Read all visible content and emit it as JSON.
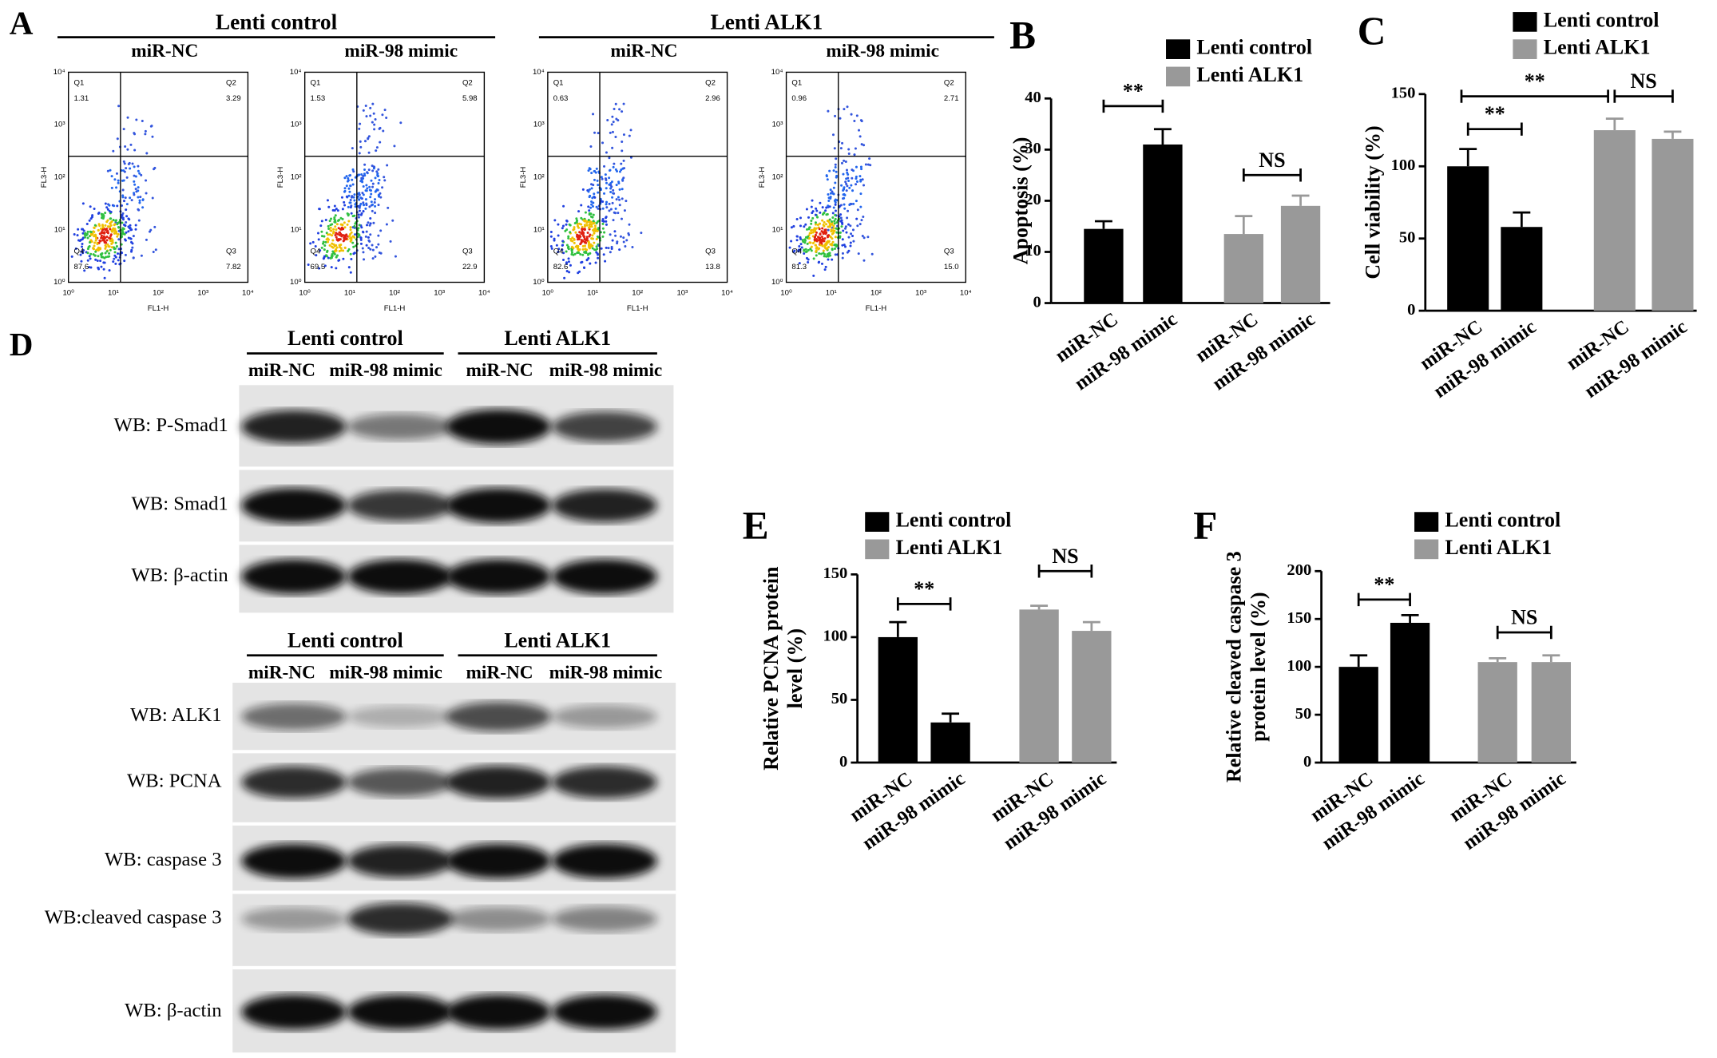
{
  "panel_a": {
    "label": "A",
    "x_axis_label": "FL1-H",
    "y_axis_label": "FL3-H",
    "tick_labels": [
      "10⁰",
      "10¹",
      "10²",
      "10³",
      "10⁴"
    ],
    "quadrant_names": [
      "Q1",
      "Q2",
      "Q3",
      "Q4"
    ],
    "groups": [
      {
        "title": "Lenti control",
        "plots": [
          {
            "title": "miR-NC",
            "quadrant_values": [
              "1.31",
              "3.29",
              "7.82",
              "87.6"
            ]
          },
          {
            "title": "miR-98 mimic",
            "quadrant_values": [
              "1.53",
              "5.98",
              "22.9",
              "69.5"
            ]
          }
        ]
      },
      {
        "title": "Lenti ALK1",
        "plots": [
          {
            "title": "miR-NC",
            "quadrant_values": [
              "0.63",
              "2.96",
              "13.8",
              "82.6"
            ]
          },
          {
            "title": "miR-98 mimic",
            "quadrant_values": [
              "0.96",
              "2.71",
              "15.0",
              "81.3"
            ]
          }
        ]
      }
    ]
  },
  "chart_data": [
    {
      "type": "bar",
      "panel": "B",
      "y_label": [
        "Apoptosis (%)"
      ],
      "legend": "top",
      "categories": [
        "miR-NC",
        "miR-98 mimic",
        "miR-NC",
        "miR-98 mimic"
      ],
      "series": [
        {
          "name": "Lenti control",
          "color": "#000000",
          "values": [
            14.5,
            31,
            null,
            null
          ],
          "errors": [
            1.5,
            3,
            null,
            null
          ]
        },
        {
          "name": "Lenti ALK1",
          "color": "#999999",
          "values": [
            null,
            null,
            13.5,
            19
          ],
          "errors": [
            null,
            null,
            3.5,
            2
          ]
        }
      ],
      "ylim": [
        0,
        40
      ],
      "yticks": [
        0,
        10,
        20,
        30,
        40
      ],
      "annotations": [
        "**",
        "NS"
      ]
    },
    {
      "type": "bar",
      "panel": "C",
      "y_label": [
        "Cell viability (%)"
      ],
      "legend": "top",
      "categories": [
        "miR-NC",
        "miR-98 mimic",
        "miR-NC",
        "miR-98 mimic"
      ],
      "series": [
        {
          "name": "Lenti control",
          "color": "#000000",
          "values": [
            100,
            58,
            null,
            null
          ],
          "errors": [
            12,
            10,
            null,
            null
          ]
        },
        {
          "name": "Lenti ALK1",
          "color": "#999999",
          "values": [
            null,
            null,
            125,
            119
          ],
          "errors": [
            null,
            null,
            8,
            5
          ]
        }
      ],
      "ylim": [
        0,
        150
      ],
      "yticks": [
        0,
        50,
        100,
        150
      ],
      "annotations": [
        "**",
        "**",
        "NS"
      ]
    },
    {
      "type": "bar",
      "panel": "E",
      "y_label": [
        "Relative PCNA protein",
        "level (%)"
      ],
      "legend": "top",
      "categories": [
        "miR-NC",
        "miR-98 mimic",
        "miR-NC",
        "miR-98 mimic"
      ],
      "series": [
        {
          "name": "Lenti control",
          "color": "#000000",
          "values": [
            100,
            32,
            null,
            null
          ],
          "errors": [
            12,
            7,
            null,
            null
          ]
        },
        {
          "name": "Lenti ALK1",
          "color": "#999999",
          "values": [
            null,
            null,
            122,
            105
          ],
          "errors": [
            null,
            null,
            3,
            7
          ]
        }
      ],
      "ylim": [
        0,
        150
      ],
      "yticks": [
        0,
        50,
        100,
        150
      ],
      "annotations": [
        "**",
        "NS"
      ]
    },
    {
      "type": "bar",
      "panel": "F",
      "y_label": [
        "Relative cleaved caspase 3",
        "protein level (%)"
      ],
      "legend": "top",
      "categories": [
        "miR-NC",
        "miR-98 mimic",
        "miR-NC",
        "miR-98 mimic"
      ],
      "series": [
        {
          "name": "Lenti control",
          "color": "#000000",
          "values": [
            100,
            146,
            null,
            null
          ],
          "errors": [
            12,
            8,
            null,
            null
          ]
        },
        {
          "name": "Lenti ALK1",
          "color": "#999999",
          "values": [
            null,
            null,
            105,
            105
          ],
          "errors": [
            null,
            null,
            4,
            7
          ]
        }
      ],
      "ylim": [
        0,
        200
      ],
      "yticks": [
        0,
        50,
        100,
        150,
        200
      ],
      "annotations": [
        "**",
        "NS"
      ]
    }
  ],
  "panel_d": {
    "label": "D",
    "blocks": [
      {
        "groups": [
          {
            "title": "Lenti control",
            "lanes": [
              "miR-NC",
              "miR-98 mimic"
            ]
          },
          {
            "title": "Lenti ALK1",
            "lanes": [
              "miR-NC",
              "miR-98 mimic"
            ]
          }
        ],
        "rows": [
          "WB: P-Smad1",
          "WB: Smad1",
          "WB: β-actin"
        ]
      },
      {
        "groups": [
          {
            "title": "Lenti control",
            "lanes": [
              "miR-NC",
              "miR-98 mimic"
            ]
          },
          {
            "title": "Lenti ALK1",
            "lanes": [
              "miR-NC",
              "miR-98 mimic"
            ]
          }
        ],
        "rows": [
          "WB: ALK1",
          "WB: PCNA",
          "WB: caspase 3",
          "WB:cleaved caspase 3",
          "WB: β-actin"
        ]
      }
    ]
  }
}
